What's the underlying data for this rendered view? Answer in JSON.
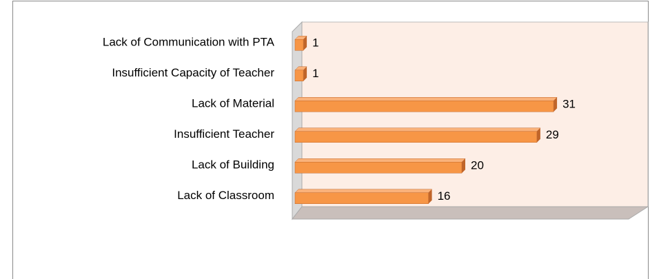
{
  "chart_data": {
    "type": "bar3d_horizontal",
    "categories": [
      "Lack of Communication with PTA",
      "Insufficient Capacity of Teacher",
      "Lack of Material",
      "Insufficient Teacher",
      "Lack of Building",
      "Lack of Classroom"
    ],
    "values": [
      1,
      1,
      31,
      29,
      20,
      16
    ],
    "color": "#f79646",
    "xlim": [
      0,
      40
    ]
  }
}
